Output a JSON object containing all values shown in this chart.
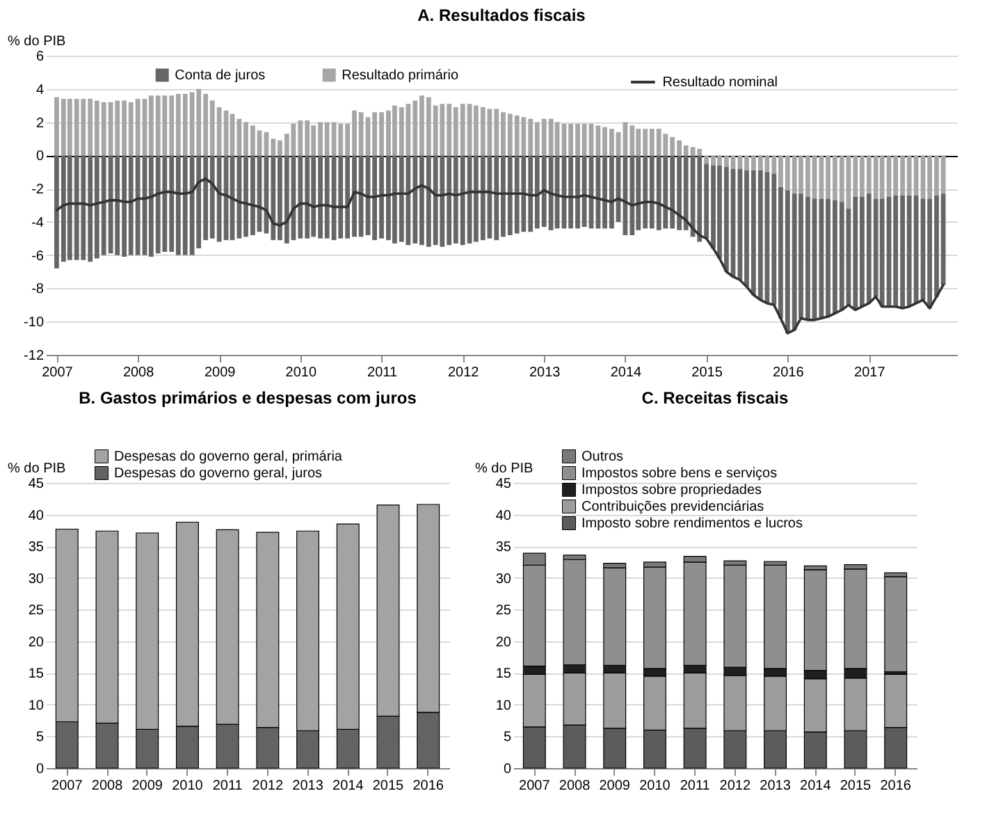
{
  "chart_data": [
    {
      "type": "bar",
      "title": "A. Resultados fiscais",
      "ylabel": "% do PIB",
      "stacked": true,
      "grid": "y",
      "legend": "top",
      "x": [
        "2007-01",
        "2007-02",
        "2007-03",
        "2007-04",
        "2007-05",
        "2007-06",
        "2007-07",
        "2007-08",
        "2007-09",
        "2007-10",
        "2007-11",
        "2007-12",
        "2008-01",
        "2008-02",
        "2008-03",
        "2008-04",
        "2008-05",
        "2008-06",
        "2008-07",
        "2008-08",
        "2008-09",
        "2008-10",
        "2008-11",
        "2008-12",
        "2009-01",
        "2009-02",
        "2009-03",
        "2009-04",
        "2009-05",
        "2009-06",
        "2009-07",
        "2009-08",
        "2009-09",
        "2009-10",
        "2009-11",
        "2009-12",
        "2010-01",
        "2010-02",
        "2010-03",
        "2010-04",
        "2010-05",
        "2010-06",
        "2010-07",
        "2010-08",
        "2010-09",
        "2010-10",
        "2010-11",
        "2010-12",
        "2011-01",
        "2011-02",
        "2011-03",
        "2011-04",
        "2011-05",
        "2011-06",
        "2011-07",
        "2011-08",
        "2011-09",
        "2011-10",
        "2011-11",
        "2011-12",
        "2012-01",
        "2012-02",
        "2012-03",
        "2012-04",
        "2012-05",
        "2012-06",
        "2012-07",
        "2012-08",
        "2012-09",
        "2012-10",
        "2012-11",
        "2012-12",
        "2013-01",
        "2013-02",
        "2013-03",
        "2013-04",
        "2013-05",
        "2013-06",
        "2013-07",
        "2013-08",
        "2013-09",
        "2013-10",
        "2013-11",
        "2013-12",
        "2014-01",
        "2014-02",
        "2014-03",
        "2014-04",
        "2014-05",
        "2014-06",
        "2014-07",
        "2014-08",
        "2014-09",
        "2014-10",
        "2014-11",
        "2014-12",
        "2015-01",
        "2015-02",
        "2015-03",
        "2015-04",
        "2015-05",
        "2015-06",
        "2015-07",
        "2015-08",
        "2015-09",
        "2015-10",
        "2015-11",
        "2015-12",
        "2016-01",
        "2016-02",
        "2016-03",
        "2016-04",
        "2016-05",
        "2016-06",
        "2016-07",
        "2016-08",
        "2016-09",
        "2016-10",
        "2016-11",
        "2016-12",
        "2017-01",
        "2017-02",
        "2017-03",
        "2017-04",
        "2017-05",
        "2017-06",
        "2017-07",
        "2017-08",
        "2017-09",
        "2017-10",
        "2017-11",
        "2017-12"
      ],
      "xlim": [
        "2006-12-15",
        "2018-01-01"
      ],
      "xticks": [
        "2007",
        "2008",
        "2009",
        "2010",
        "2011",
        "2012",
        "2013",
        "2014",
        "2015",
        "2016",
        "2017"
      ],
      "ylim": [
        -12,
        6
      ],
      "yticks": [
        -12,
        -10,
        -8,
        -6,
        -4,
        -2,
        0,
        2,
        4,
        6
      ],
      "series": [
        {
          "name": "Resultado primário",
          "color": "#a6a6a6",
          "values": [
            3.5,
            3.4,
            3.4,
            3.4,
            3.4,
            3.4,
            3.3,
            3.2,
            3.2,
            3.3,
            3.3,
            3.2,
            3.4,
            3.4,
            3.6,
            3.6,
            3.6,
            3.6,
            3.7,
            3.7,
            3.8,
            4.0,
            3.7,
            3.3,
            2.9,
            2.7,
            2.5,
            2.2,
            2.0,
            1.8,
            1.5,
            1.4,
            1.0,
            0.9,
            1.3,
            1.9,
            2.1,
            2.1,
            1.8,
            2.0,
            2.0,
            2.0,
            1.9,
            1.9,
            2.7,
            2.6,
            2.3,
            2.6,
            2.6,
            2.7,
            3.0,
            2.9,
            3.1,
            3.3,
            3.6,
            3.5,
            3.0,
            3.1,
            3.1,
            2.9,
            3.1,
            3.1,
            3.0,
            2.9,
            2.8,
            2.8,
            2.6,
            2.5,
            2.4,
            2.3,
            2.2,
            2.0,
            2.2,
            2.2,
            2.0,
            1.9,
            1.9,
            1.9,
            1.9,
            1.9,
            1.8,
            1.7,
            1.6,
            1.4,
            2.0,
            1.8,
            1.6,
            1.6,
            1.6,
            1.6,
            1.3,
            1.1,
            0.9,
            0.6,
            0.5,
            0.4,
            -0.5,
            -0.6,
            -0.6,
            -0.7,
            -0.8,
            -0.8,
            -0.9,
            -0.9,
            -0.9,
            -1.0,
            -1.1,
            -1.9,
            -2.1,
            -2.3,
            -2.3,
            -2.5,
            -2.6,
            -2.6,
            -2.6,
            -2.7,
            -2.8,
            -3.2,
            -2.5,
            -2.5,
            -2.3,
            -2.6,
            -2.6,
            -2.5,
            -2.4,
            -2.4,
            -2.4,
            -2.4,
            -2.6,
            -2.6,
            -2.4,
            -2.3
          ]
        },
        {
          "name": "Conta de juros",
          "color": "#666666",
          "values": [
            -6.8,
            -6.4,
            -6.3,
            -6.3,
            -6.3,
            -6.4,
            -6.2,
            -6.0,
            -5.9,
            -6.0,
            -6.1,
            -6.0,
            -6.0,
            -6.0,
            -6.1,
            -5.9,
            -5.8,
            -5.8,
            -6.0,
            -6.0,
            -6.0,
            -5.6,
            -5.1,
            -5.0,
            -5.2,
            -5.1,
            -5.1,
            -5.0,
            -4.9,
            -4.8,
            -4.6,
            -4.7,
            -5.1,
            -5.1,
            -5.3,
            -5.1,
            -5.0,
            -5.0,
            -4.9,
            -5.0,
            -5.0,
            -5.1,
            -5.0,
            -5.0,
            -4.9,
            -4.9,
            -4.8,
            -5.1,
            -5.0,
            -5.1,
            -5.3,
            -5.2,
            -5.4,
            -5.3,
            -5.4,
            -5.5,
            -5.4,
            -5.5,
            -5.4,
            -5.3,
            -5.4,
            -5.3,
            -5.2,
            -5.1,
            -5.0,
            -5.1,
            -4.9,
            -4.8,
            -4.7,
            -4.6,
            -4.6,
            -4.4,
            -4.3,
            -4.5,
            -4.4,
            -4.4,
            -4.4,
            -4.4,
            -4.3,
            -4.4,
            -4.4,
            -4.4,
            -4.4,
            -4.0,
            -4.8,
            -4.8,
            -4.5,
            -4.4,
            -4.4,
            -4.5,
            -4.4,
            -4.4,
            -4.5,
            -4.5,
            -4.9,
            -5.2,
            -4.5,
            -5.0,
            -5.6,
            -6.3,
            -6.5,
            -6.7,
            -7.0,
            -7.5,
            -7.8,
            -7.9,
            -7.9,
            -7.9,
            -8.6,
            -8.2,
            -7.5,
            -7.4,
            -7.3,
            -7.2,
            -7.1,
            -6.8,
            -6.5,
            -5.8,
            -6.8,
            -6.6,
            -6.6,
            -5.9,
            -6.5,
            -6.6,
            -6.7,
            -6.8,
            -6.7,
            -6.5,
            -6.1,
            -6.6,
            -6.1,
            -5.5
          ]
        },
        {
          "name": "Resultado nominal",
          "type": "line",
          "color": "#333333",
          "values": [
            -3.3,
            -3.0,
            -2.9,
            -2.9,
            -2.9,
            -3.0,
            -2.9,
            -2.8,
            -2.7,
            -2.7,
            -2.8,
            -2.8,
            -2.6,
            -2.6,
            -2.5,
            -2.3,
            -2.2,
            -2.2,
            -2.3,
            -2.3,
            -2.2,
            -1.6,
            -1.4,
            -1.7,
            -2.3,
            -2.4,
            -2.6,
            -2.8,
            -2.9,
            -3.0,
            -3.1,
            -3.3,
            -4.1,
            -4.2,
            -4.0,
            -3.2,
            -2.9,
            -2.9,
            -3.1,
            -3.0,
            -3.0,
            -3.1,
            -3.1,
            -3.1,
            -2.2,
            -2.3,
            -2.5,
            -2.5,
            -2.4,
            -2.4,
            -2.3,
            -2.3,
            -2.3,
            -2.0,
            -1.8,
            -2.0,
            -2.4,
            -2.4,
            -2.3,
            -2.4,
            -2.3,
            -2.2,
            -2.2,
            -2.2,
            -2.2,
            -2.3,
            -2.3,
            -2.3,
            -2.3,
            -2.3,
            -2.4,
            -2.4,
            -2.1,
            -2.3,
            -2.4,
            -2.5,
            -2.5,
            -2.5,
            -2.4,
            -2.5,
            -2.6,
            -2.7,
            -2.8,
            -2.6,
            -2.8,
            -3.0,
            -2.9,
            -2.8,
            -2.8,
            -2.9,
            -3.1,
            -3.3,
            -3.6,
            -3.9,
            -4.4,
            -4.8,
            -5.0,
            -5.6,
            -6.2,
            -7.0,
            -7.3,
            -7.5,
            -7.9,
            -8.4,
            -8.7,
            -8.9,
            -9.0,
            -9.8,
            -10.7,
            -10.5,
            -9.8,
            -9.9,
            -9.9,
            -9.8,
            -9.7,
            -9.5,
            -9.3,
            -9.0,
            -9.3,
            -9.1,
            -8.9,
            -8.5,
            -9.1,
            -9.1,
            -9.1,
            -9.2,
            -9.1,
            -8.9,
            -8.7,
            -9.2,
            -8.5,
            -7.8
          ]
        }
      ]
    },
    {
      "type": "bar",
      "title": "B. Gastos primários e despesas com juros",
      "ylabel": "% do PIB",
      "stacked": true,
      "grid": "y",
      "legend": "top left",
      "categories": [
        "2007",
        "2008",
        "2009",
        "2010",
        "2011",
        "2012",
        "2013",
        "2014",
        "2015",
        "2016"
      ],
      "ylim": [
        0,
        45
      ],
      "yticks": [
        0,
        5,
        10,
        15,
        20,
        25,
        30,
        35,
        40,
        45
      ],
      "series": [
        {
          "name": "Despesas do governo geral, juros",
          "color": "#636363",
          "values": [
            7.3,
            7.1,
            6.1,
            6.6,
            6.9,
            6.4,
            5.9,
            6.1,
            8.2,
            8.8
          ]
        },
        {
          "name": "Despesas do governo geral, primária",
          "color": "#a3a3a3",
          "values": [
            30.4,
            30.3,
            31.0,
            32.2,
            30.7,
            30.8,
            31.5,
            32.4,
            33.3,
            32.8
          ]
        }
      ]
    },
    {
      "type": "bar",
      "title": "C. Receitas fiscais",
      "ylabel": "% do PIB",
      "stacked": true,
      "grid": "y",
      "legend": "top left",
      "categories": [
        "2007",
        "2008",
        "2009",
        "2010",
        "2011",
        "2012",
        "2013",
        "2014",
        "2015",
        "2016"
      ],
      "ylim": [
        0,
        45
      ],
      "yticks": [
        0,
        5,
        10,
        15,
        20,
        25,
        30,
        35,
        40,
        45
      ],
      "series": [
        {
          "name": "Imposto sobre rendimentos e lucros",
          "color": "#5c5c5c",
          "values": [
            6.5,
            6.8,
            6.3,
            6.0,
            6.3,
            5.9,
            5.9,
            5.7,
            5.9,
            6.4
          ]
        },
        {
          "name": "Contribuições previdenciárias",
          "color": "#9c9c9c",
          "values": [
            8.3,
            8.2,
            8.7,
            8.5,
            8.7,
            8.7,
            8.6,
            8.4,
            8.3,
            8.4
          ]
        },
        {
          "name": "Impostos sobre propriedades",
          "color": "#1f1f1f",
          "values": [
            1.3,
            1.3,
            1.2,
            1.2,
            1.2,
            1.3,
            1.2,
            1.3,
            1.5,
            0.4
          ]
        },
        {
          "name": "Impostos sobre bens e serviços",
          "color": "#8f8f8f",
          "values": [
            15.9,
            16.6,
            15.4,
            16.0,
            16.3,
            16.1,
            16.3,
            15.9,
            15.7,
            15.0
          ]
        },
        {
          "name": "Outros",
          "color": "#7a7a7a",
          "values": [
            1.9,
            0.7,
            0.7,
            0.8,
            0.9,
            0.7,
            0.6,
            0.6,
            0.7,
            0.6
          ]
        }
      ]
    }
  ]
}
